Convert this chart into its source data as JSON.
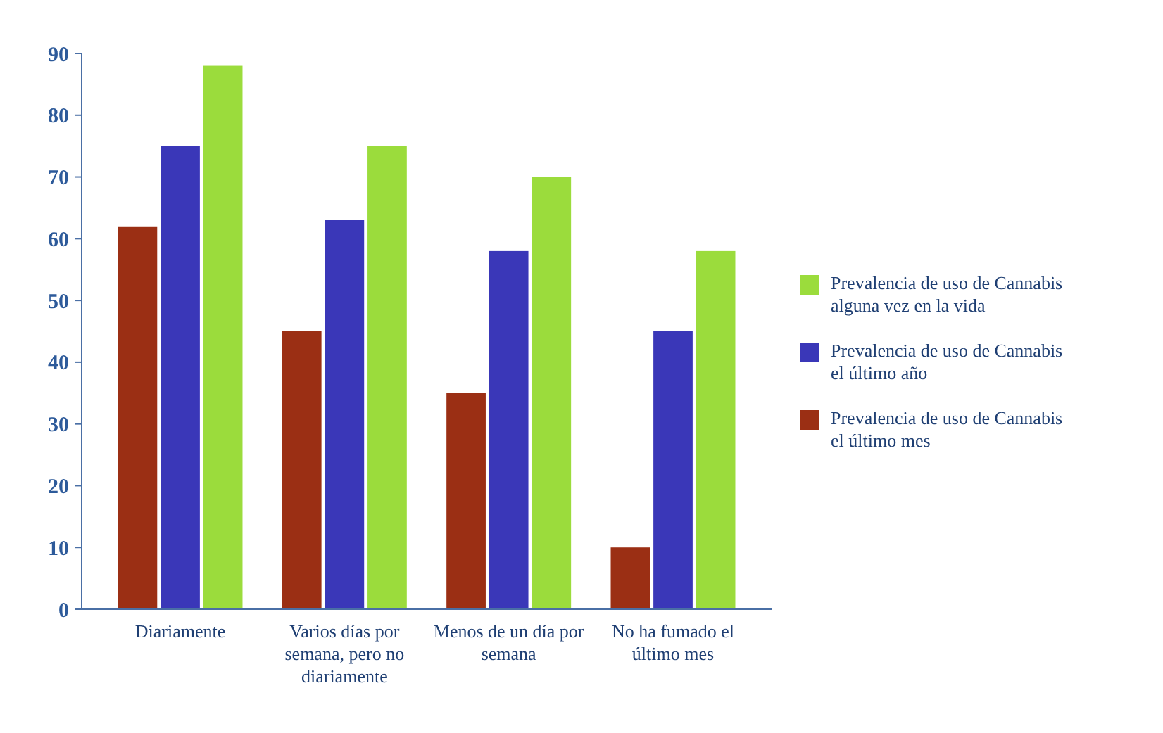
{
  "chart_data": {
    "type": "bar",
    "categories": [
      "Diariamente",
      "Varios días por semana, pero no diariamente",
      "Menos de un día por semana",
      "No ha fumado el último mes"
    ],
    "series": [
      {
        "name": "Prevalencia de uso de Cannabis el último mes",
        "color": "#9b2f14",
        "values": [
          62,
          45,
          35,
          10
        ]
      },
      {
        "name": "Prevalencia de uso de Cannabis el último año",
        "color": "#3a37b8",
        "values": [
          75,
          63,
          58,
          45
        ]
      },
      {
        "name": "Prevalencia de uso de Cannabis alguna vez en la vida",
        "color": "#9bdc3c",
        "values": [
          88,
          75,
          70,
          58
        ]
      }
    ],
    "ylim": [
      0,
      90
    ],
    "yticks": [
      0,
      10,
      20,
      30,
      40,
      50,
      60,
      70,
      80,
      90
    ],
    "grid": false,
    "legend": "right"
  }
}
